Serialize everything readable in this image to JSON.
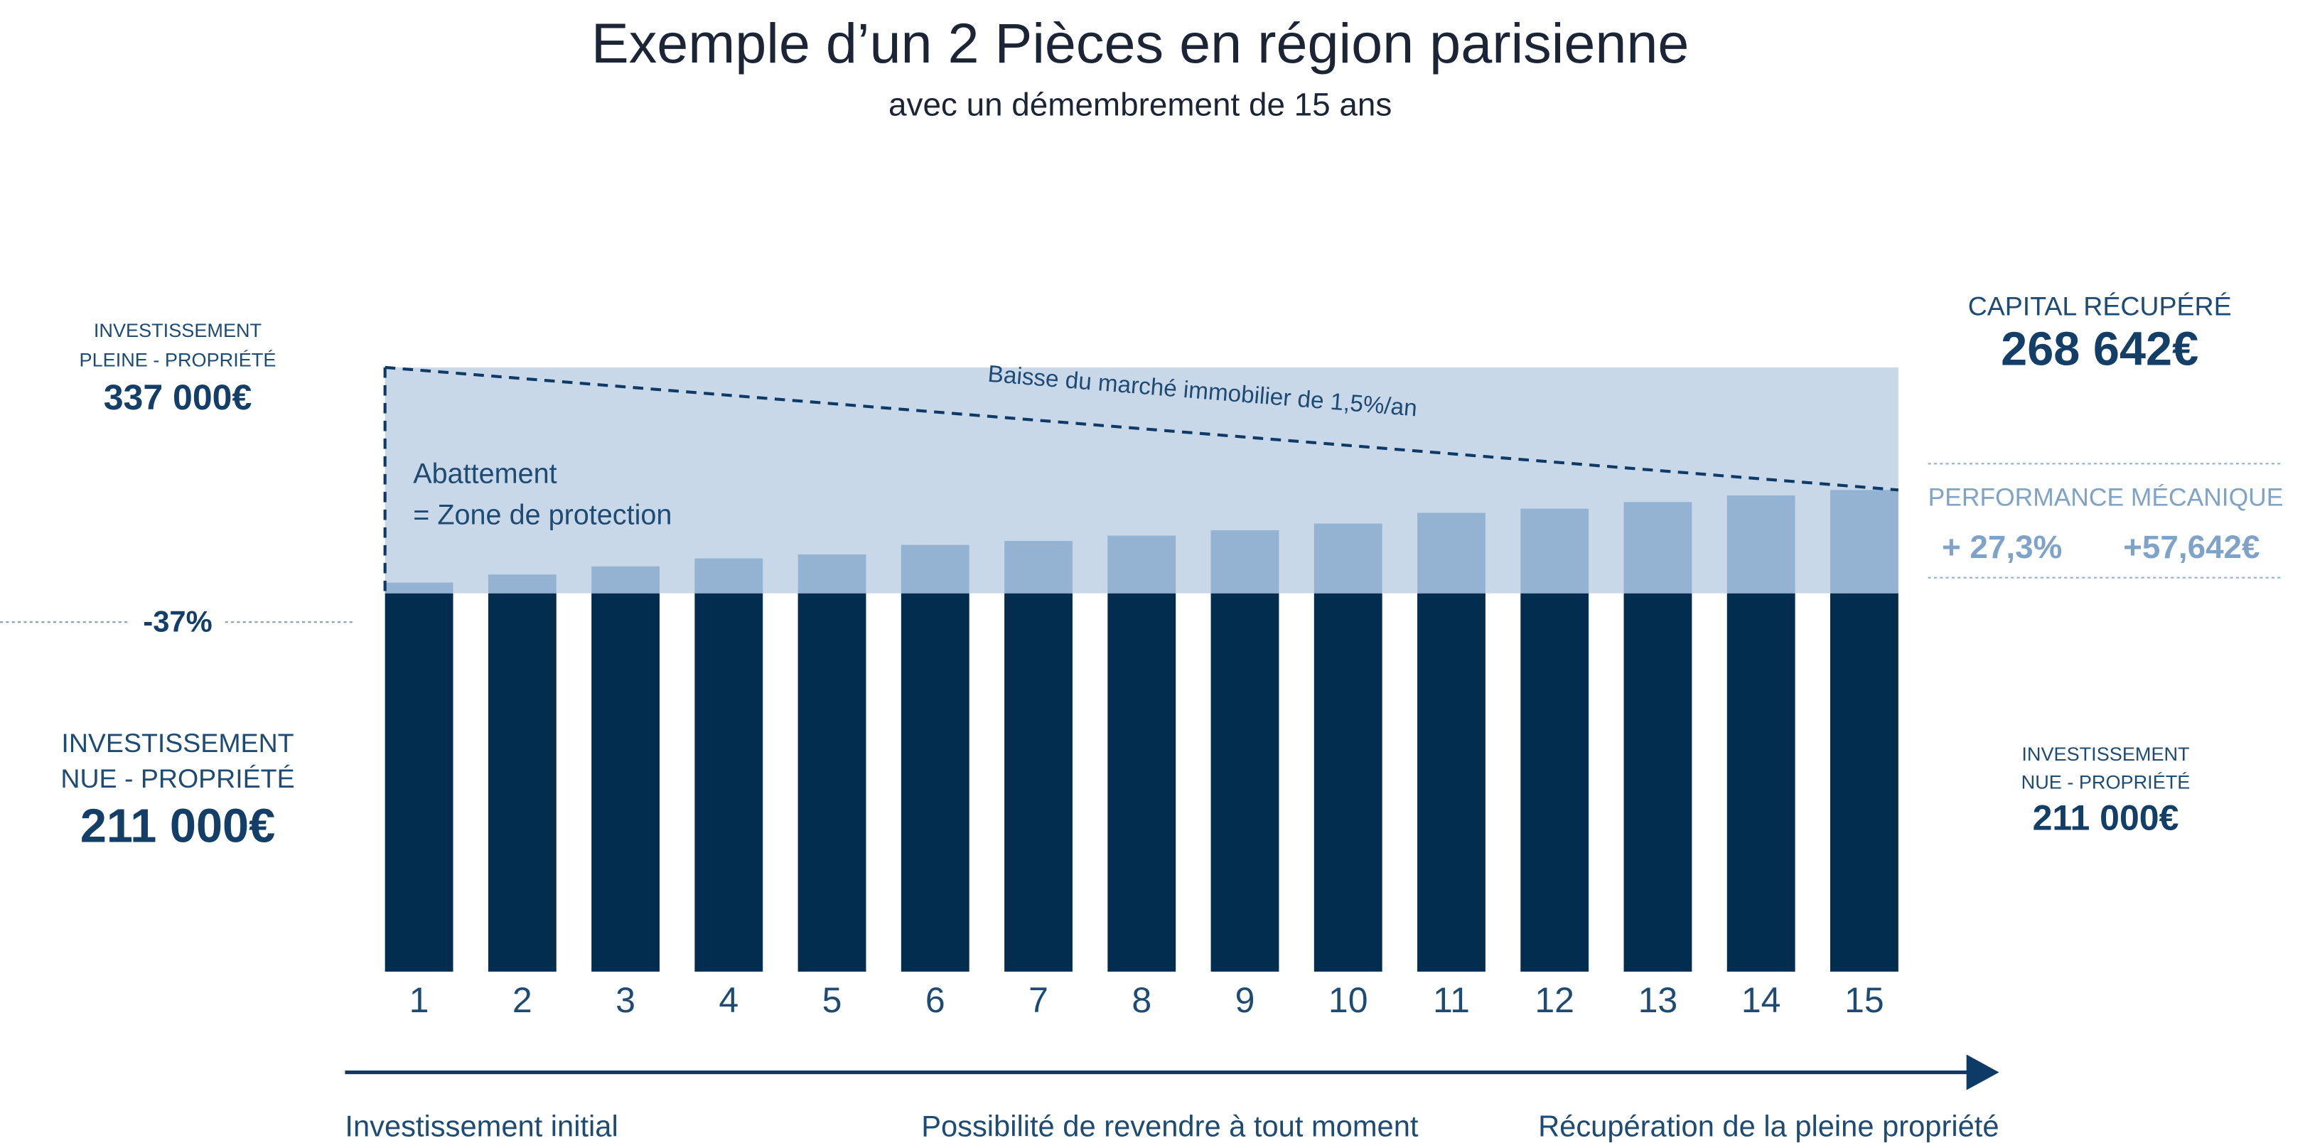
{
  "chart_data": {
    "type": "bar",
    "stacked": true,
    "title": "Exemple d’un 2 Pièces en région parisienne",
    "subtitle": "avec un démembrement de 15 ans",
    "categories": [
      "1",
      "2",
      "3",
      "4",
      "5",
      "6",
      "7",
      "8",
      "9",
      "10",
      "11",
      "12",
      "13",
      "14",
      "15"
    ],
    "series": [
      {
        "color": "#022d4e",
        "values": [
          211000,
          211000,
          211000,
          211000,
          211000,
          211000,
          211000,
          211000,
          211000,
          211000,
          211000,
          211000,
          211000,
          211000,
          211000
        ]
      },
      {
        "color": "#94b3d3",
        "values": [
          6000,
          10500,
          15000,
          19500,
          21700,
          27000,
          29200,
          32200,
          35200,
          38900,
          44900,
          47200,
          50900,
          54600,
          57642
        ]
      }
    ],
    "ylim": [
      0,
      337000
    ],
    "protection_zone": {
      "color": "#c9d8e8",
      "lines": [
        "Abattement",
        "= Zone de protection"
      ]
    },
    "market_decline": {
      "label": "Baisse du marché immobilier de 1,5%/an",
      "start": 337000,
      "end": 268642
    },
    "full_ownership": {
      "lines": [
        "INVESTISSEMENT",
        "PLEINE - PROPRIÉTÉ"
      ],
      "value": 337000,
      "value_label": "337 000€"
    },
    "discount": {
      "value": -37,
      "value_label": "-37%"
    },
    "bare_ownership_start": {
      "lines": [
        "INVESTISSEMENT",
        "NUE - PROPRIÉTÉ"
      ],
      "value": 211000,
      "value_label": "211 000€"
    },
    "capital_recovered": {
      "lines": [
        "CAPITAL RÉCUPÉRÉ"
      ],
      "value": 268642,
      "value_label": "268 642€"
    },
    "performance": {
      "title": "PERFORMANCE MÉCANIQUE",
      "percent": 27.3,
      "percent_label": "+ 27,3%",
      "gain": 57642,
      "gain_label": "+57,642€"
    },
    "bare_ownership_end": {
      "lines": [
        "INVESTISSEMENT",
        "NUE - PROPRIÉTÉ"
      ],
      "value": 211000,
      "value_label": "211 000€"
    },
    "timeline": [
      "Investissement initial",
      "Possibilité de revendre à tout moment",
      "Récupération de la pleine propriété"
    ]
  }
}
